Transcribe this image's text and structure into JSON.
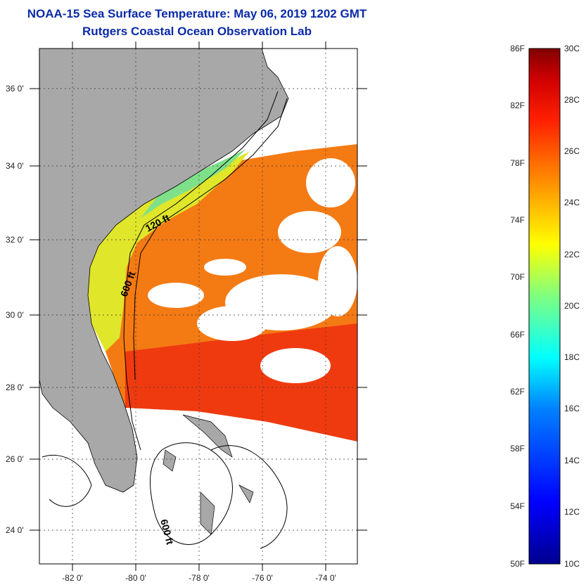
{
  "title": "NOAA-15 Sea Surface Temperature:  May 06, 2019 1202 GMT",
  "subtitle": "Rutgers Coastal Ocean Observation Lab",
  "map": {
    "lat_labels": [
      "36 0'",
      "34 0'",
      "32 0'",
      "30 0'",
      "28 0'",
      "26 0'",
      "24 0'"
    ],
    "lon_labels": [
      "-82 0'",
      "-80 0'",
      "-78 0'",
      "-76 0'",
      "-74 0'"
    ],
    "contour_labels": [
      "120 ft",
      "600 ft",
      "600 ft"
    ],
    "colors": {
      "land": "#a8a8a8",
      "ocean_warm": "#ef3a10",
      "ocean_mid": "#f47a14",
      "shelf": "#e6e82a",
      "cloud": "#ffffff"
    }
  },
  "colorbar": {
    "f_labels": [
      "86F",
      "82F",
      "78F",
      "74F",
      "70F",
      "66F",
      "62F",
      "58F",
      "54F",
      "50F"
    ],
    "c_labels": [
      "30C",
      "28C",
      "26C",
      "24C",
      "22C",
      "20C",
      "18C",
      "16C",
      "14C",
      "12C",
      "10C"
    ]
  }
}
